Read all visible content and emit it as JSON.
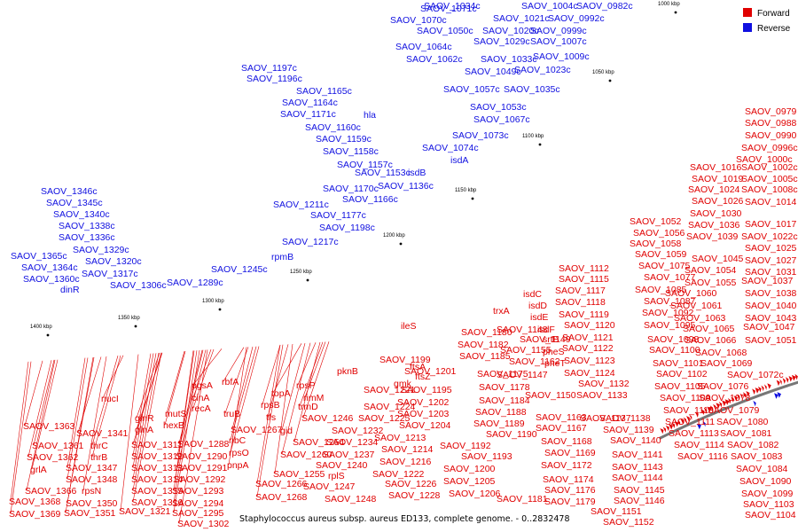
{
  "caption": "Staphylococcus aureus subsp. aureus ED133, complete genome. - 0..2832478",
  "legend": [
    {
      "label": "Forward",
      "color": "#e00000"
    },
    {
      "label": "Reverse",
      "color": "#1010e0"
    }
  ],
  "colors": {
    "forward": "#e00000",
    "reverse": "#1010e0",
    "backbone": "#777777"
  },
  "ticks": [
    "1000 kbp",
    "1050 kbp",
    "1100 kbp",
    "1150 kbp",
    "1200 kbp",
    "1250 kbp",
    "1300 kbp",
    "1350 kbp",
    "1400 kbp"
  ],
  "reverse_labels": [
    "SAOV_0982c",
    "SAOV_0992c",
    "SAOV_0999c",
    "SAOV_1004c",
    "SAOV_1007c",
    "SAOV_1009c",
    "SAOV_1021c",
    "SAOV_1020c",
    "SAOV_1023c",
    "SAOV_1029c",
    "SAOV_1033c",
    "SAOV_1034c",
    "SAOV_1035c",
    "SAOV_1049c",
    "SAOV_1050c",
    "SAOV_1053c",
    "SAOV_1057c",
    "SAOV_1062c",
    "SAOV_1064c",
    "SAOV_1067c",
    "SAOV_1070c",
    "SAOV_1071c",
    "SAOV_1073c",
    "SAOV_1074c",
    "isdA",
    "isdB",
    "SAOV_1136c",
    "SAOV_1153c",
    "SAOV_1157c",
    "SAOV_1158c",
    "SAOV_1159c",
    "SAOV_1160c",
    "hla",
    "SAOV_1171c",
    "SAOV_1164c",
    "SAOV_1165c",
    "SAOV_1166c",
    "SAOV_1170c",
    "SAOV_1177c",
    "SAOV_1196c",
    "SAOV_1197c",
    "SAOV_1198c",
    "SAOV_1211c",
    "SAOV_1217c",
    "rpmB",
    "SAOV_1245c",
    "SAOV_1289c",
    "SAOV_1306c",
    "SAOV_1317c",
    "SAOV_1320c",
    "SAOV_1329c",
    "SAOV_1336c",
    "SAOV_1338c",
    "SAOV_1340c",
    "SAOV_1345c",
    "SAOV_1346c",
    "SAOV_1360c",
    "SAOV_1364c",
    "SAOV_1365c",
    "dinR"
  ],
  "forward_right_labels": [
    "SAOV_0979",
    "SAOV_0988",
    "SAOV_0990",
    "SAOV_0996c",
    "SAOV_1000c",
    "SAOV_1002c",
    "SAOV_1005c",
    "SAOV_1008c",
    "SAOV_1014",
    "SAOV_1017",
    "SAOV_1022c",
    "SAOV_1025",
    "SAOV_1027",
    "SAOV_1031",
    "SAOV_1037",
    "SAOV_1038",
    "SAOV_1040",
    "SAOV_1043",
    "SAOV_1047",
    "SAOV_1051",
    "SAOV_1016",
    "SAOV_1019",
    "SAOV_1024",
    "SAOV_1026",
    "SAOV_1030",
    "SAOV_1036",
    "SAOV_1039",
    "SAOV_1045",
    "SAOV_1054",
    "SAOV_1055",
    "SAOV_1052",
    "SAOV_1056",
    "SAOV_1058",
    "SAOV_1059",
    "SAOV_1060",
    "SAOV_1061",
    "SAOV_1063",
    "SAOV_1065",
    "SAOV_1066",
    "SAOV_1068",
    "SAOV_1069",
    "SAOV_1072c",
    "SAOV_1076",
    "SAOV_1078",
    "SAOV_1079",
    "SAOV_1080",
    "SAOV_1081",
    "SAOV_1082",
    "SAOV_1083",
    "SAOV_1084",
    "SAOV_1090",
    "SAOV_1099",
    "SAOV_1103",
    "SAOV_1104",
    "SAOV_1075",
    "SAOV_1077",
    "SAOV_1085",
    "SAOV_1087",
    "SAOV_1092",
    "SAOV_1095",
    "SAOV_1098",
    "SAOV_1100",
    "SAOV_1101",
    "SAOV_1102",
    "SAOV_1105",
    "SAOV_1109",
    "SAOV_1110",
    "SAOV_1111",
    "SAOV_1113",
    "SAOV_1114",
    "SAOV_1116"
  ],
  "forward_mid_labels": [
    "SAOV_1112",
    "SAOV_1115",
    "SAOV_1117",
    "SAOV_1118",
    "SAOV_1119",
    "SAOV_1120",
    "SAOV_1121",
    "SAOV_1122",
    "SAOV_1123",
    "SAOV_1124",
    "isdC",
    "isdD",
    "isdE",
    "isdF",
    "srtB",
    "trxA",
    "SAOV_1148",
    "SAOV_1149",
    "SAOV_1155",
    "SAOV_1162",
    "SAOV_1147",
    "pheS",
    "pheT",
    "SAOV_1132",
    "SAOV_1133",
    "SAOV_1137",
    "SAOV_1138",
    "SAOV_1139",
    "SAOV_1140",
    "SAOV_1141",
    "SAOV_1143",
    "SAOV_1144",
    "SAOV_1145",
    "SAOV_1146",
    "SAOV_1151",
    "SAOV_1152",
    "SAOV_1150",
    "SAOV_1163",
    "SAOV_1167",
    "SAOV_1168",
    "SAOV_1169",
    "SAOV_1172",
    "SAOV_1174",
    "SAOV_1176",
    "SAOV_1179",
    "SAOV_1181",
    "SAOV_1180",
    "SAOV_1182",
    "SAOV_1185",
    "SAOV_1175",
    "SAOV_1178",
    "SAOV_1184",
    "SAOV_1188",
    "SAOV_1189",
    "SAOV_1190",
    "SAOV_1192",
    "SAOV_1193",
    "SAOV_1200",
    "SAOV_1205",
    "SAOV_1206",
    "ileS",
    "SAOV_1199",
    "SAOV_1201",
    "ftsA",
    "ftsZ",
    "SAOV_1195",
    "SAOV_1202",
    "SAOV_1203",
    "SAOV_1204",
    "SAOV_1213",
    "SAOV_1214",
    "SAOV_1216",
    "SAOV_1222",
    "SAOV_1226",
    "SAOV_1228",
    "pknB",
    "SAOV_1221",
    "gmk",
    "SAOV_1224",
    "SAOV_1225",
    "SAOV_1232",
    "SAOV_1234",
    "SAOV_1237",
    "SAOV_1240",
    "rplS",
    "SAOV_1247",
    "SAOV_1248"
  ],
  "forward_left_labels": [
    "rpsP",
    "rimM",
    "trmD",
    "SAOV_1246",
    "topA",
    "rpsB",
    "tfs",
    "gid",
    "SAOV_1254",
    "SAOV_1260",
    "SAOV_1255",
    "rbfA",
    "truB",
    "ribC",
    "rpsO",
    "pnpA",
    "SAOV_1267",
    "SAOV_1266",
    "SAOV_1268",
    "pgsA",
    "cinA",
    "recA",
    "SAOV_1288",
    "SAOV_1290",
    "SAOV_1291",
    "SAOV_1292",
    "SAOV_1293",
    "SAOV_1294",
    "SAOV_1295",
    "SAOV_1302",
    "mutS",
    "hexB",
    "glnR",
    "glnA",
    "SAOV_1311",
    "SAOV_1312",
    "SAOV_1313",
    "SAOV_1314",
    "SAOV_1315",
    "SAOV_1316",
    "SAOV_1321",
    "nucI",
    "SAOV_1341",
    "thrC",
    "thrB",
    "SAOV_1347",
    "SAOV_1348",
    "rpsN",
    "SAOV_1350",
    "SAOV_1351",
    "SAOV_1363",
    "SAOV_1361",
    "SAOV_1362",
    "grlA",
    "SAOV_1366",
    "SAOV_1368",
    "SAOV_1369"
  ]
}
